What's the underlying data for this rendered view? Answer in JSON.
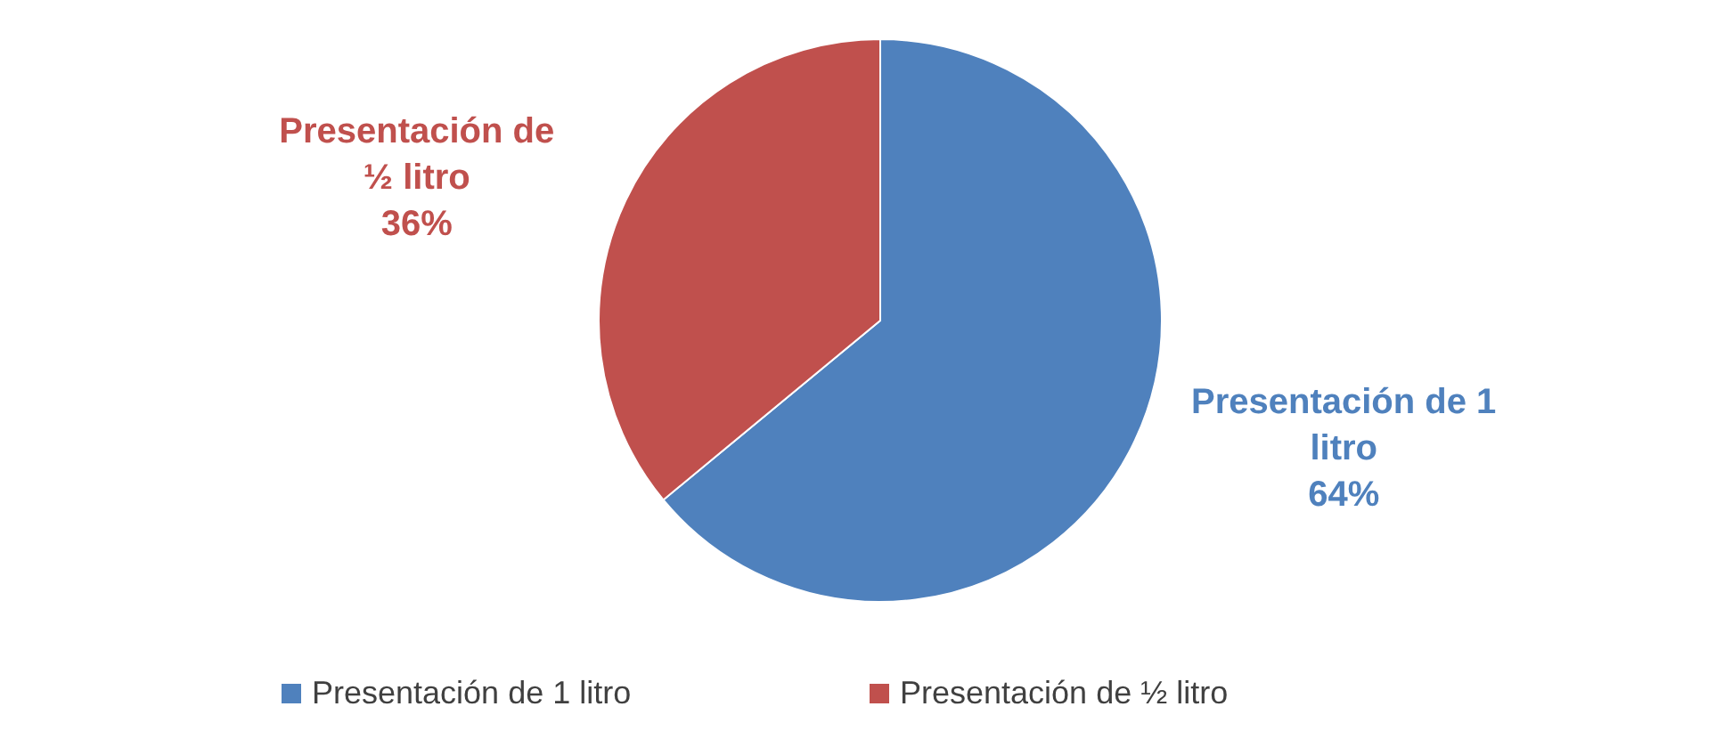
{
  "chart_data": {
    "type": "pie",
    "categories": [
      "Presentación de 1 litro",
      "Presentación de ½ litro"
    ],
    "values": [
      64,
      36
    ],
    "value_labels": [
      "64%",
      "36%"
    ],
    "colors": [
      "#4f81bd",
      "#c0504d"
    ],
    "legend": "bottom"
  }
}
